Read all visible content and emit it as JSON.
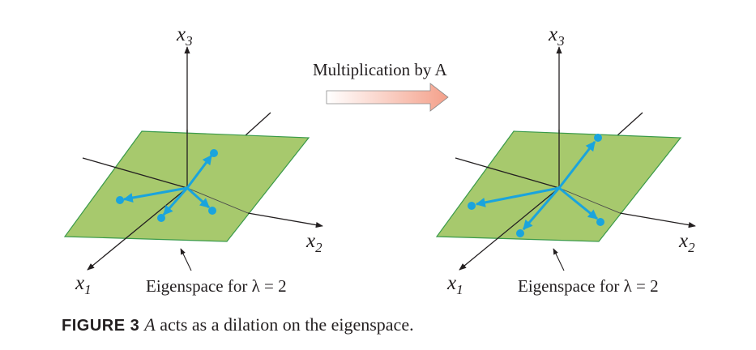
{
  "arrow_label": "Multiplication by A",
  "left_panel": {
    "x1_label": "x",
    "x1_sub": "1",
    "x2_label": "x",
    "x2_sub": "2",
    "x3_label": "x",
    "x3_sub": "3",
    "eigenspace_label": "Eigenspace for λ = 2"
  },
  "right_panel": {
    "x1_label": "x",
    "x1_sub": "1",
    "x2_label": "x",
    "x2_sub": "2",
    "x3_label": "x",
    "x3_sub": "3",
    "eigenspace_label": "Eigenspace for λ = 2"
  },
  "caption": {
    "number": "FIGURE 3",
    "variable": "A",
    "text": " acts as a dilation on the eigenspace."
  },
  "colors": {
    "plane_fill": "#a7c96d",
    "plane_edge": "#3a9a4a",
    "vector": "#1aa4dd",
    "axis": "#231f20",
    "arrow_start": "#ffffff",
    "arrow_end": "#f4a08a"
  }
}
